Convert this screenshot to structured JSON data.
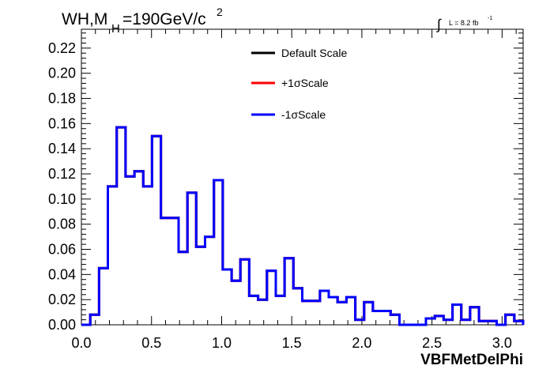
{
  "chart_data": {
    "type": "histogram",
    "title": {
      "prefix": "WH,M",
      "subscript": "H",
      "main": "=190GeV/c",
      "superscript": "2"
    },
    "luminosity": {
      "integral_symbol": "∫",
      "text": "L = 8.2 fb",
      "superscript": "-1"
    },
    "xlabel": "VBFMetDelPhi",
    "ylabel": "",
    "xlim": [
      0.0,
      3.15
    ],
    "ylim": [
      0.0,
      0.235
    ],
    "x_ticks": [
      0.0,
      0.5,
      1.0,
      1.5,
      2.0,
      2.5,
      3.0
    ],
    "x_tick_labels": [
      "0.0",
      "0.5",
      "1.0",
      "1.5",
      "2.0",
      "2.5",
      "3.0"
    ],
    "y_ticks": [
      0.0,
      0.02,
      0.04,
      0.06,
      0.08,
      0.1,
      0.12,
      0.14,
      0.16,
      0.18,
      0.2,
      0.22
    ],
    "y_tick_labels": [
      "0.00",
      "0.02",
      "0.04",
      "0.06",
      "0.08",
      "0.10",
      "0.12",
      "0.14",
      "0.16",
      "0.18",
      "0.20",
      "0.22"
    ],
    "bin_edges": [
      0.0,
      0.063,
      0.126,
      0.189,
      0.252,
      0.315,
      0.378,
      0.441,
      0.504,
      0.567,
      0.63,
      0.693,
      0.756,
      0.819,
      0.882,
      0.945,
      1.008,
      1.071,
      1.134,
      1.197,
      1.26,
      1.323,
      1.386,
      1.449,
      1.512,
      1.575,
      1.638,
      1.701,
      1.764,
      1.827,
      1.89,
      1.953,
      2.016,
      2.079,
      2.142,
      2.205,
      2.268,
      2.331,
      2.394,
      2.457,
      2.52,
      2.583,
      2.646,
      2.709,
      2.772,
      2.835,
      2.898,
      2.961,
      3.024,
      3.087,
      3.15
    ],
    "legend_position": "top-center",
    "series": [
      {
        "name": "Default Scale",
        "color": "#000000",
        "values": [
          0.0,
          0.008,
          0.045,
          0.11,
          0.157,
          0.118,
          0.122,
          0.11,
          0.15,
          0.085,
          0.085,
          0.058,
          0.105,
          0.062,
          0.07,
          0.115,
          0.044,
          0.035,
          0.052,
          0.023,
          0.02,
          0.043,
          0.023,
          0.053,
          0.029,
          0.019,
          0.019,
          0.027,
          0.022,
          0.018,
          0.022,
          0.004,
          0.018,
          0.011,
          0.011,
          0.008,
          0.0,
          0.0,
          0.0,
          0.005,
          0.007,
          0.004,
          0.016,
          0.004,
          0.014,
          0.003,
          0.003,
          0.0,
          0.008,
          0.003
        ]
      },
      {
        "name": "+1σScale",
        "color": "#ff0000",
        "values": [
          0.0,
          0.008,
          0.045,
          0.11,
          0.157,
          0.118,
          0.122,
          0.11,
          0.15,
          0.085,
          0.085,
          0.058,
          0.105,
          0.062,
          0.07,
          0.115,
          0.044,
          0.035,
          0.052,
          0.023,
          0.02,
          0.043,
          0.023,
          0.053,
          0.029,
          0.019,
          0.019,
          0.027,
          0.022,
          0.018,
          0.022,
          0.004,
          0.018,
          0.011,
          0.011,
          0.008,
          0.0,
          0.0,
          0.0,
          0.005,
          0.007,
          0.004,
          0.016,
          0.004,
          0.014,
          0.003,
          0.003,
          0.0,
          0.008,
          0.003
        ]
      },
      {
        "name": "-1σScale",
        "color": "#0000ff",
        "values": [
          0.0,
          0.008,
          0.045,
          0.11,
          0.157,
          0.118,
          0.122,
          0.11,
          0.15,
          0.085,
          0.085,
          0.058,
          0.105,
          0.062,
          0.07,
          0.115,
          0.044,
          0.035,
          0.052,
          0.023,
          0.02,
          0.043,
          0.023,
          0.053,
          0.029,
          0.019,
          0.019,
          0.027,
          0.022,
          0.018,
          0.022,
          0.004,
          0.018,
          0.011,
          0.011,
          0.008,
          0.0,
          0.0,
          0.0,
          0.005,
          0.007,
          0.004,
          0.016,
          0.004,
          0.014,
          0.003,
          0.003,
          0.0,
          0.008,
          0.003
        ]
      }
    ]
  }
}
